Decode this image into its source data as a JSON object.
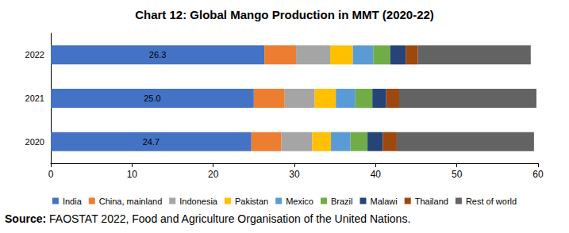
{
  "chart_data": {
    "type": "bar",
    "orientation": "horizontal",
    "stacked": true,
    "title": "Chart 12: Global Mango Production in MMT (2020-22)",
    "source": "Source: FAOSTAT 2022, Food and Agriculture Organisation of the United Nations.",
    "categories": [
      "2020",
      "2021",
      "2022"
    ],
    "series": [
      {
        "name": "India",
        "color": "#4472c4",
        "values": [
          24.7,
          25.0,
          26.3
        ],
        "data_labels": true,
        "value_labels": [
          "24.7",
          "25.0",
          "26.3"
        ]
      },
      {
        "name": "China, mainland",
        "color": "#ed7d31",
        "values": [
          3.7,
          3.8,
          3.9
        ]
      },
      {
        "name": "Indonesia",
        "color": "#a5a5a5",
        "values": [
          3.8,
          3.7,
          4.2
        ]
      },
      {
        "name": "Pakistan",
        "color": "#ffc000",
        "values": [
          2.3,
          2.6,
          2.8
        ]
      },
      {
        "name": "Mexico",
        "color": "#5b9bd5",
        "values": [
          2.4,
          2.4,
          2.5
        ]
      },
      {
        "name": "Brazil",
        "color": "#70ad47",
        "values": [
          2.1,
          2.1,
          2.1
        ]
      },
      {
        "name": "Malawi",
        "color": "#264478",
        "values": [
          1.9,
          1.7,
          1.9
        ]
      },
      {
        "name": "Thailand",
        "color": "#9e480e",
        "values": [
          1.7,
          1.6,
          1.5
        ]
      },
      {
        "name": "Rest of world",
        "color": "#636363",
        "values": [
          16.9,
          16.9,
          13.9
        ]
      }
    ],
    "xlim": [
      0,
      60
    ],
    "xticks": [
      0,
      10,
      20,
      30,
      40,
      50,
      60
    ],
    "grid": false,
    "legend": "bottom"
  }
}
